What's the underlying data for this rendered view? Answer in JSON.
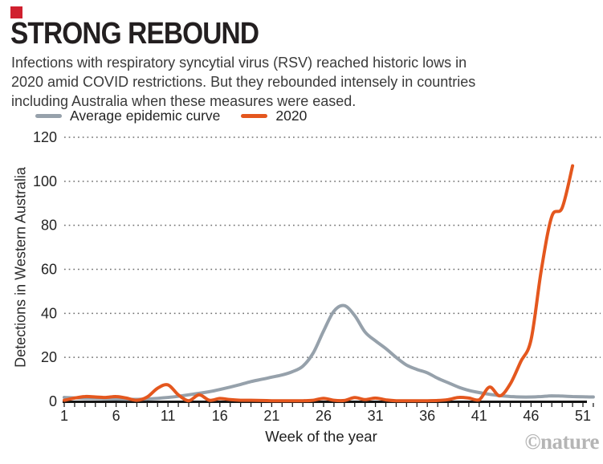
{
  "header": {
    "title": "STRONG REBOUND",
    "subtitle_lines": [
      "Infections with respiratory syncytial virus (RSV) reached historic lows in",
      "2020 amid COVID restrictions. But they rebounded intensely in countries",
      "including Australia when these measures were eased."
    ]
  },
  "legend": {
    "items": [
      {
        "label": "Average epidemic curve",
        "color": "#96a1ab"
      },
      {
        "label": "2020",
        "color": "#e4571e"
      }
    ]
  },
  "watermark": "©nature",
  "colors": {
    "brand_red": "#d0202e",
    "gray_series": "#96a1ab",
    "orange_series": "#e4571e",
    "grid_dots": "#6e6e6e",
    "axis_line": "#141414",
    "axis_text": "#242424",
    "watermark_gray": "#b5b5b5"
  },
  "chart_data": {
    "type": "line",
    "title": "STRONG REBOUND",
    "xlabel": "Week of the year",
    "ylabel": "Detections in Western Australia",
    "xlim": [
      1,
      52
    ],
    "ylim": [
      0,
      120
    ],
    "x_ticks": [
      1,
      6,
      11,
      16,
      21,
      26,
      31,
      36,
      41,
      46,
      51
    ],
    "y_ticks": [
      0,
      20,
      40,
      60,
      80,
      100,
      120
    ],
    "grid": "horizontal dotted gridlines",
    "legend_position": "top-left above plot",
    "series": [
      {
        "name": "Average epidemic curve",
        "color": "#96a1ab",
        "x": [
          1,
          2,
          3,
          4,
          5,
          6,
          7,
          8,
          9,
          10,
          11,
          12,
          13,
          14,
          15,
          16,
          17,
          18,
          19,
          20,
          21,
          22,
          23,
          24,
          25,
          26,
          27,
          28,
          29,
          30,
          31,
          32,
          33,
          34,
          35,
          36,
          37,
          38,
          39,
          40,
          41,
          42,
          43,
          44,
          45,
          46,
          47,
          48,
          49,
          50,
          51,
          52
        ],
        "values": [
          1.8,
          1.6,
          1.4,
          1.3,
          1.2,
          1.1,
          1.0,
          0.9,
          1.1,
          1.4,
          1.8,
          2.3,
          3.0,
          3.7,
          4.4,
          5.4,
          6.5,
          7.7,
          9.0,
          10.0,
          11.0,
          12.0,
          13.5,
          16.0,
          22.0,
          32.0,
          41.0,
          43.5,
          39.0,
          31.5,
          27.5,
          24.0,
          20.0,
          16.5,
          14.5,
          13.0,
          10.5,
          8.5,
          6.5,
          5.0,
          4.0,
          3.2,
          2.6,
          2.2,
          2.0,
          2.0,
          2.2,
          2.5,
          2.4,
          2.2,
          2.1,
          2.0
        ]
      },
      {
        "name": "2020",
        "color": "#e4571e",
        "x": [
          1,
          2,
          3,
          4,
          5,
          6,
          7,
          8,
          9,
          10,
          11,
          12,
          13,
          14,
          15,
          16,
          17,
          18,
          19,
          20,
          21,
          22,
          23,
          24,
          25,
          26,
          27,
          28,
          29,
          30,
          31,
          32,
          33,
          34,
          35,
          36,
          37,
          38,
          39,
          40,
          41,
          42,
          43,
          44,
          45,
          46,
          47,
          48,
          49,
          50
        ],
        "values": [
          0.5,
          1.5,
          2.2,
          2.0,
          1.8,
          2.2,
          1.5,
          0.5,
          2.0,
          6.0,
          7.5,
          3.0,
          0.3,
          3.0,
          0.5,
          1.3,
          0.8,
          0.5,
          0.5,
          0.4,
          0.3,
          0.3,
          0.3,
          0.3,
          0.5,
          1.4,
          0.5,
          0.4,
          1.7,
          0.8,
          1.5,
          0.7,
          0.3,
          0.3,
          0.3,
          0.3,
          0.4,
          0.8,
          1.8,
          1.5,
          0.7,
          6.5,
          2.5,
          8.0,
          18.0,
          28.0,
          60.0,
          84.0,
          88.0,
          107.0
        ]
      }
    ]
  }
}
